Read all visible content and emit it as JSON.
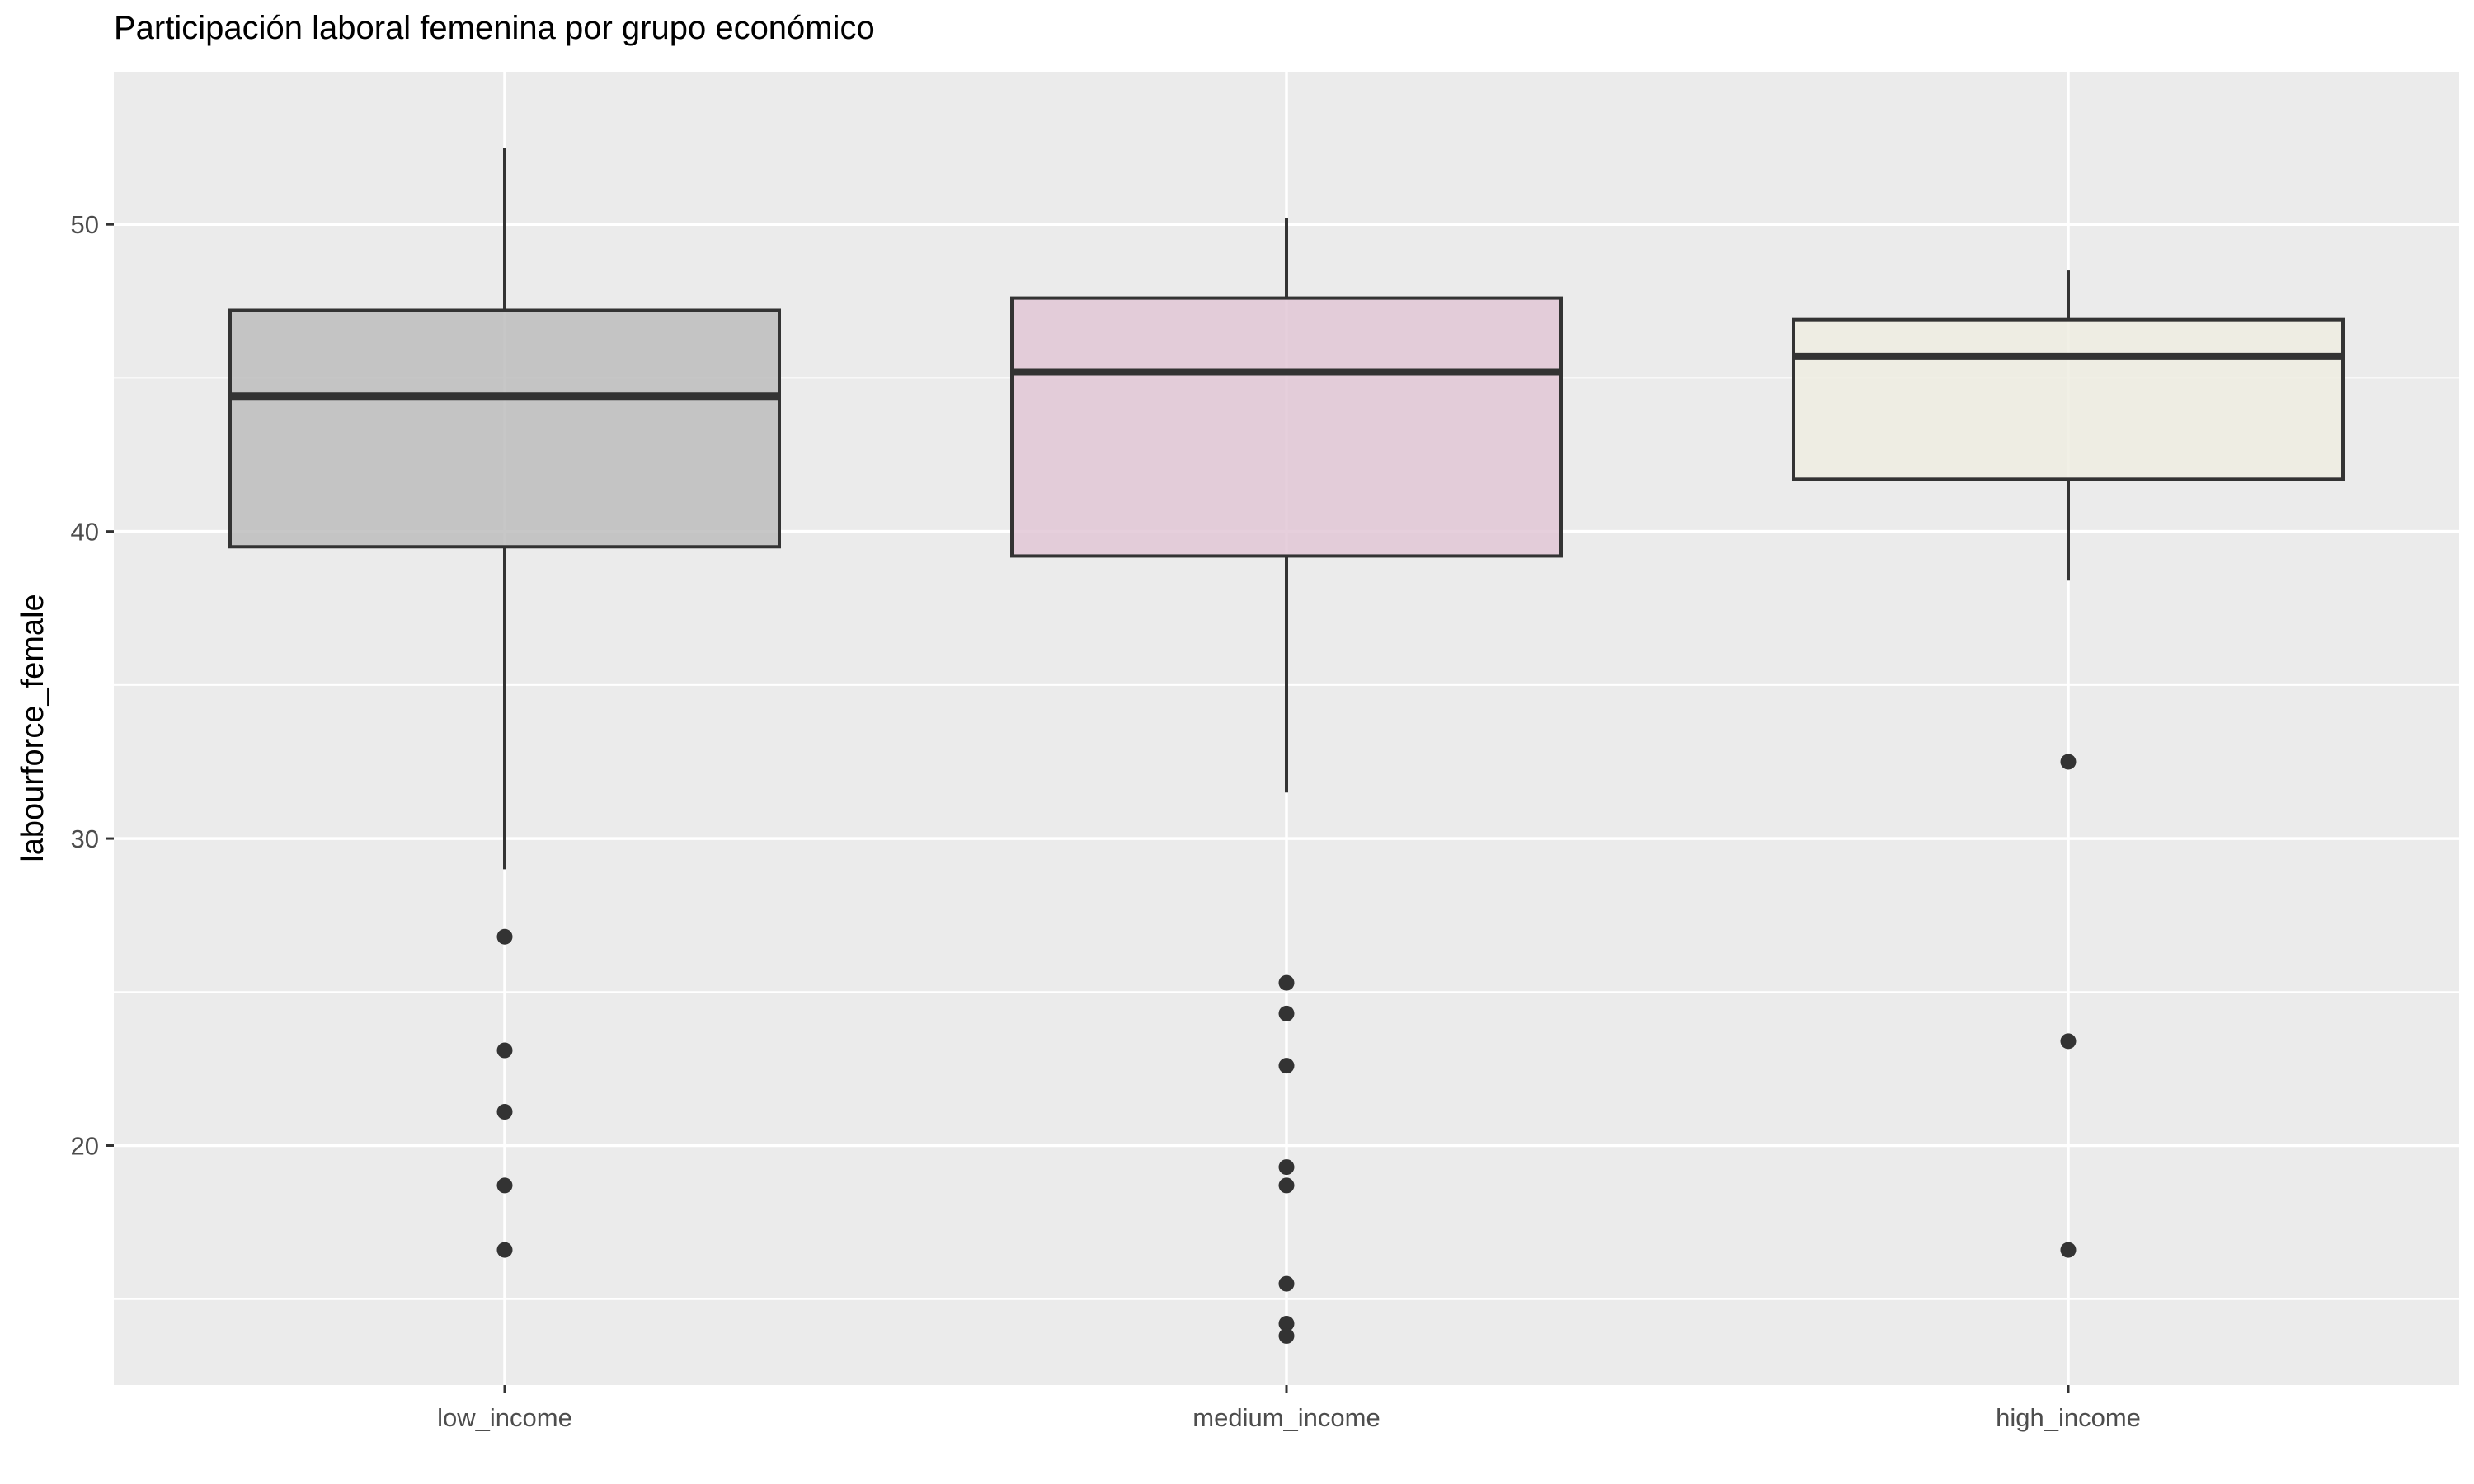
{
  "chart_data": {
    "type": "boxplot",
    "title": "Participación laboral femenina por grupo económico",
    "xlabel": "",
    "ylabel": "labourforce_female",
    "ylim": [
      12.2,
      55.0
    ],
    "y_ticks": [
      20,
      30,
      40,
      50
    ],
    "grid": true,
    "legend": "none",
    "colors": {
      "panel_bg": "#EBEBEB",
      "grid": "#FFFFFF",
      "box_outline": "#333333",
      "outlier": "#333333"
    },
    "categories": [
      "low_income",
      "medium_income",
      "high_income"
    ],
    "boxes": [
      {
        "category": "low_income",
        "fill": "#BBBBBB",
        "whisker_low": 29.0,
        "q1": 39.5,
        "median": 44.4,
        "q3": 47.2,
        "whisker_high": 52.5,
        "outliers": [
          26.8,
          23.1,
          21.1,
          18.7,
          16.6
        ]
      },
      {
        "category": "medium_income",
        "fill": "#E0C5D4",
        "whisker_low": 31.5,
        "q1": 39.2,
        "median": 45.2,
        "q3": 47.6,
        "whisker_high": 50.2,
        "outliers": [
          25.3,
          24.3,
          22.6,
          19.3,
          18.7,
          15.5,
          14.2,
          13.8
        ]
      },
      {
        "category": "high_income",
        "fill": "#EEEDE0",
        "whisker_low": 38.4,
        "q1": 41.7,
        "median": 45.7,
        "q3": 46.9,
        "whisker_high": 48.5,
        "outliers": [
          32.5,
          23.4,
          16.6
        ]
      }
    ]
  }
}
